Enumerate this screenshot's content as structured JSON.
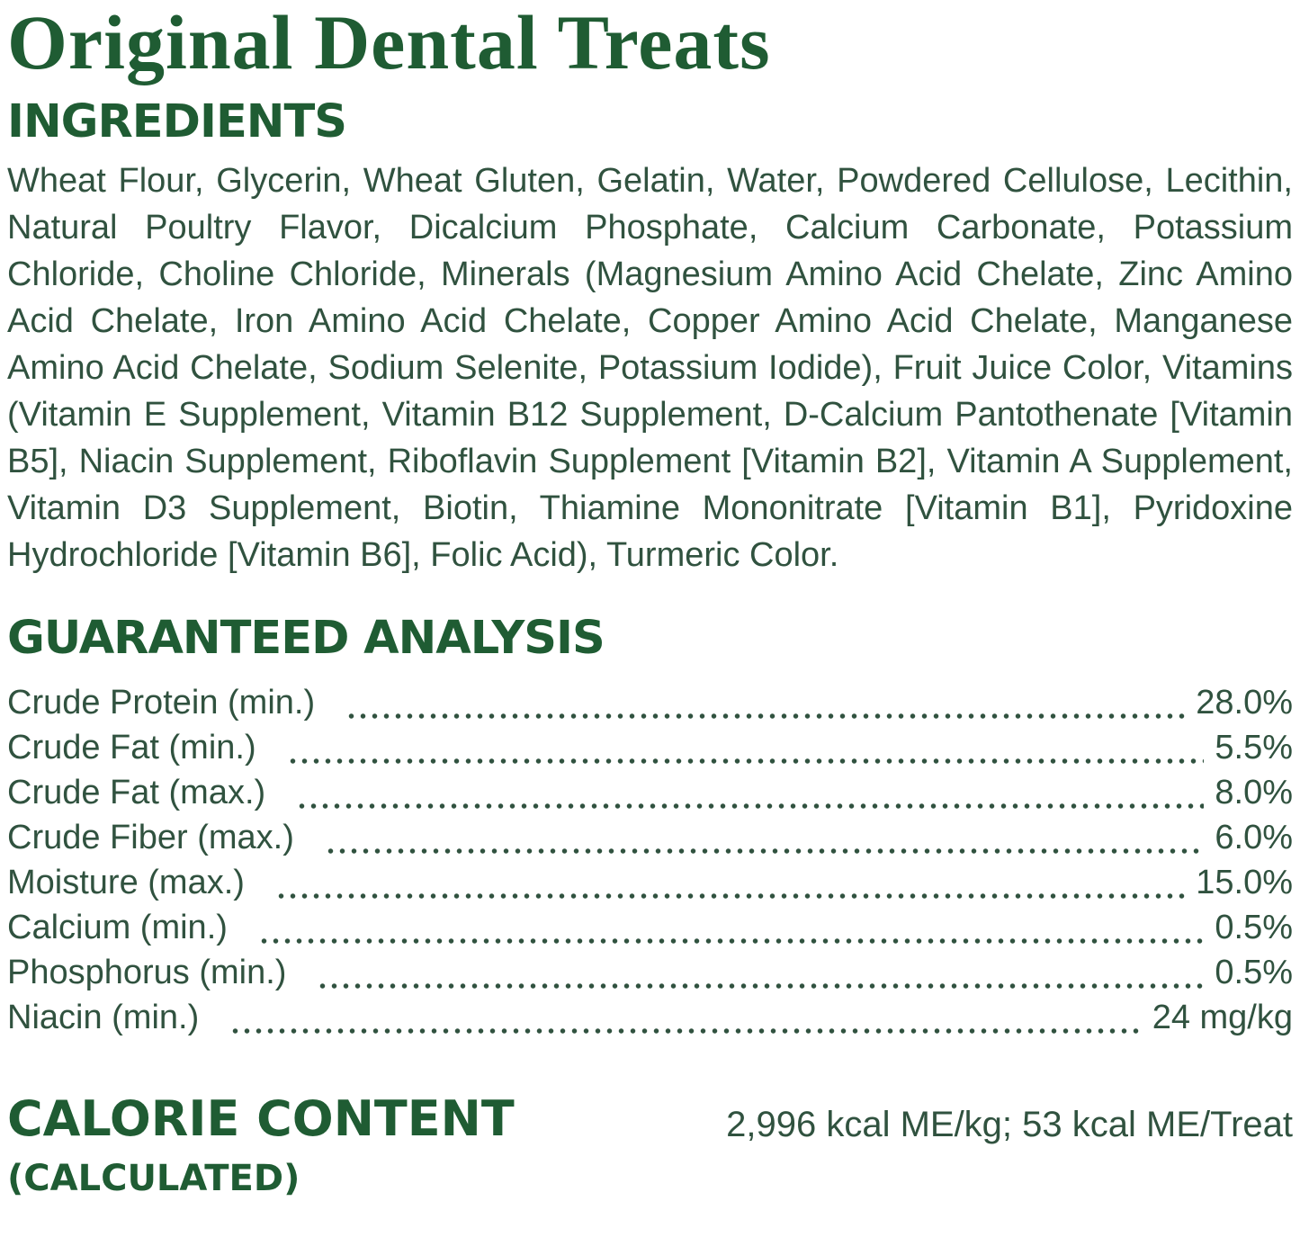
{
  "colors": {
    "heading_green": "#1f5c33",
    "body_green": "#30523f",
    "background": "#ffffff"
  },
  "title": "Original Dental Treats",
  "ingredients": {
    "heading": "INGREDIENTS",
    "text": "Wheat Flour, Glycerin, Wheat Gluten, Gelatin, Water, Powdered Cellulose, Lecithin, Natural Poultry Flavor, Dicalcium Phosphate, Calcium Carbonate, Potassium Chloride, Choline Chloride, Minerals (Magnesium Amino Acid Chelate, Zinc Amino Acid Chelate, Iron Amino Acid Chelate, Copper Amino Acid Chelate, Manganese Amino Acid Chelate, Sodium Selenite, Potassium Iodide), Fruit Juice Color, Vitamins (Vitamin E Supplement, Vitamin B12 Supplement, D-Calcium Pantothenate [Vitamin B5], Niacin Supplement, Riboflavin Supplement [Vitamin B2], Vitamin A Supplement, Vitamin D3 Supplement, Biotin, Thiamine Mononitrate [Vitamin B1], Pyridoxine Hydrochloride [Vitamin B6], Folic Acid), Turmeric Color."
  },
  "guaranteed_analysis": {
    "heading": "GUARANTEED ANALYSIS",
    "rows": [
      {
        "label": "Crude Protein (min.)",
        "value": "28.0%"
      },
      {
        "label": "Crude Fat (min.)",
        "value": "5.5%"
      },
      {
        "label": "Crude Fat (max.)",
        "value": "8.0%"
      },
      {
        "label": "Crude Fiber (max.)",
        "value": "6.0%"
      },
      {
        "label": "Moisture (max.)",
        "value": "15.0%"
      },
      {
        "label": "Calcium (min.)",
        "value": "0.5%"
      },
      {
        "label": "Phosphorus (min.)",
        "value": "0.5%"
      },
      {
        "label": "Niacin (min.)",
        "value": "24 mg/kg"
      }
    ]
  },
  "calorie_content": {
    "heading": "CALORIE CONTENT",
    "subheading": "(CALCULATED)",
    "value": "2,996 kcal ME/kg; 53 kcal ME/Treat"
  }
}
